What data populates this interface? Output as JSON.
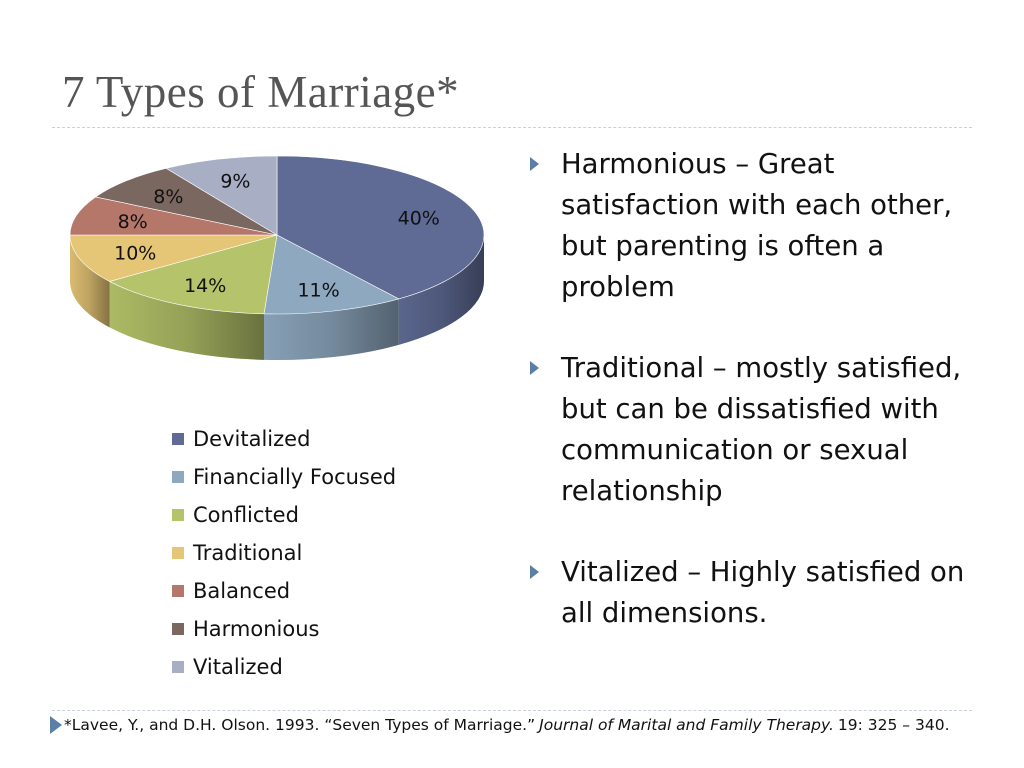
{
  "slide": {
    "title": "7 Types of Marriage*"
  },
  "bullets": [
    "Harmonious – Great satisfaction with each other, but parenting is often a problem",
    "Traditional – mostly satisfied, but can be dissatisfied with communication or sexual relationship",
    "Vitalized – Highly satisfied on all dimensions."
  ],
  "footnote": {
    "prefix": "*Lavee, Y., and D.H. Olson. 1993. “Seven Types of Marriage.”",
    "journal": "Journal of Marital and Family Therapy.",
    "suffix": "19: 325 – 340."
  },
  "chart_data": {
    "type": "pie",
    "style": "3d",
    "legend_position": "bottom-left",
    "categories": [
      "Devitalized",
      "Financially Focused",
      "Conflicted",
      "Traditional",
      "Balanced",
      "Harmonious",
      "Vitalized"
    ],
    "values": [
      40,
      11,
      14,
      10,
      8,
      8,
      9
    ],
    "labels": [
      "40%",
      "11%",
      "14%",
      "10%",
      "8%",
      "8%",
      "9%"
    ],
    "colors": [
      "#5f6b94",
      "#8ea8bf",
      "#b5c46a",
      "#e5c576",
      "#b4776a",
      "#7a6860",
      "#a8aec4"
    ]
  }
}
